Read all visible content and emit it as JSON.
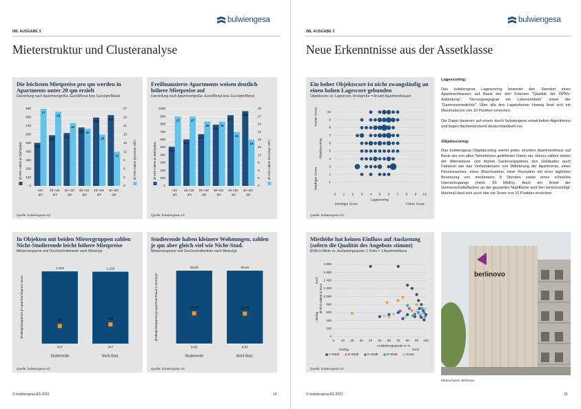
{
  "pages": [
    {
      "header": "IML AUSGABE 3",
      "logo": "bulwiengesa",
      "title": "Mieterstruktur und Clusteranalyse",
      "footer": "© bulwiengesa AG 2021",
      "page_number": "14"
    },
    {
      "header": "IML AUSGABE 3",
      "logo": "bulwiengesa",
      "title": "Neue Erkenntnisse aus der Assetklasse",
      "footer": "© bulwiengesa AG 2021",
      "page_number": "15"
    }
  ],
  "text": {
    "sections": [
      {
        "heading": "Lagescoring:",
        "paragraphs": [
          "Das bulwiengesa Lagescoring bewertet den Standort eines Apartmenthauses auf Basis der drei Kriterien \"Qualität der ÖPNV-Anbindung\", \"Versorgungsgrad mit Lebensmitteln\" sowie der \"Gastronomiedichte\". Über alle drei Lagekriterien hinweg lässt sich ein Maximalscore von 10 Punkten erreichen.",
          "Die Daten basieren auf einem durch bulwiengesa entwickelten Algorithmus und liegen flächendeckend deutschlandweit vor."
        ]
      },
      {
        "heading": "Objektscoring:",
        "paragraphs": [
          "Das bulwiengesa Objektscoring wertet jedes einzelne Apartmenthaus auf Basis der von allen Teilnehmern gelieferten Daten ein. Hierzu zählen neben der Altersklasse und letzten Sanierungsjahres des Gebäudes auch Faktoren wie das Vorhandensein von Möblierung der Apartments, eines Fitnessraumes, eines Waschsalons, einer Rezeption mit einer täglichen Besetzung von mindestens 8 Stunden sowie eines schnellen Internetzugangs (mind. 50 Mbit/s). Auch der Anteil der Gemeinschaftsflächen an der gesamten Nutzfläche wird hier berücksichtigt. Maximal lässt sich auch hier ein Score von 10 Punkten erreichen."
        ]
      }
    ]
  },
  "photo": {
    "sign": "berlinovo",
    "caption": "Bildnachweis: Berlinovo"
  },
  "chart_data": [
    {
      "type": "bar",
      "title": "Die höchsten Mietpreise pro qm werden in Apartments unter 20 qm erzielt",
      "subtitle": "Darstellung nach Apartmentgröße, Euro/Monat bzw. Euro/qm/Monat",
      "source": "Quelle: bulwiengesa AG",
      "categories": [
        "<20 qm",
        "20-<25 qm",
        "25-<30 qm",
        "30-<40 qm",
        "40-<50 qm",
        "40-<50 qm"
      ],
      "series": [
        {
          "name": "Ø All-in Miete je Wohnplatz",
          "color": "#1d4e7e",
          "values": [
            503,
            592,
            617,
            682,
            798,
            826
          ]
        },
        {
          "name": "Ø All-in Miete (Euro/qm Wfl.)",
          "color": "#62c3ea",
          "values": [
            27,
            26,
            22,
            20,
            18,
            12
          ],
          "axis": "y2"
        }
      ],
      "ylim": [
        0,
        900
      ],
      "yticks": [
        0,
        100,
        200,
        300,
        400,
        500,
        600,
        700,
        800,
        900
      ],
      "y2lim": [
        0,
        27
      ],
      "y2ticks": [
        0,
        3,
        6,
        9,
        12,
        15,
        18,
        21,
        24,
        27
      ],
      "grid": true
    },
    {
      "type": "bar",
      "title": "Freifinanzierte Apartments weisen deutlich höhere Mietpreise auf",
      "subtitle": "Darstellung nach Apartmentgröße, Euro/Monat bzw. Euro/qm/Monat",
      "source": "Quelle: bulwiengesa AG",
      "categories": [
        "<20 qm",
        "20-<25 qm",
        "25-<30 qm",
        "30-<40 qm",
        "40-<50 qm",
        "40-<50 qm"
      ],
      "series": [
        {
          "name": "Ø All-in Miete je Wohnplatz",
          "color": "#1d4e7e",
          "values": [
            508,
            603,
            671,
            794,
            917,
            969
          ]
        },
        {
          "name": "Ø All-in Miete (Euro/qm Wfl.)",
          "color": "#62c3ea",
          "values": [
            27,
            27,
            25,
            25,
            21,
            18
          ],
          "axis": "y2"
        }
      ],
      "ylim": [
        0,
        1000
      ],
      "yticks": [
        0,
        100,
        200,
        300,
        400,
        500,
        600,
        700,
        800,
        900,
        1000
      ],
      "y2lim": [
        0,
        30
      ],
      "y2ticks": [
        0,
        3,
        6,
        9,
        12,
        15,
        18,
        21,
        24,
        27,
        30
      ],
      "grid": true
    },
    {
      "type": "range",
      "title": "In Objekten mit beiden Mietergruppen zahlen Nicht-Studierende leicht höhere Mietpreise",
      "subtitle": "Mietpreisspanne und Durchschnittsmiete nach Mietertyp",
      "source": "Quelle: bulwiengesa AG",
      "ylabel": "Ø-Mietpreisspanne je Apartmenthaus in Euro",
      "categories": [
        "Studierende",
        "Nicht-Stud."
      ],
      "low": {
        "color": "#0d4a7c",
        "values": [
          347,
          347
        ],
        "value_labels": [
          "347",
          "347"
        ]
      },
      "high": {
        "color": "#0d4a7c",
        "values": [
          1233,
          1229
        ],
        "value_labels": [
          "1.233",
          "1.229"
        ]
      },
      "mean": {
        "color": "#f0962a",
        "values": [
          565,
          584
        ],
        "value_labels": [
          "565",
          "584"
        ]
      },
      "ylim": [
        300,
        1290
      ]
    },
    {
      "type": "range",
      "title": "Studierende haben kleinere Wohnungen, zahlen je qm aber gleich viel wie Nicht-Stud.",
      "subtitle": "Mietpreisspanne und Durchschnittsmiete nach Mietertyp",
      "source": "Quelle: bulwiengesa AG",
      "ylabel": "Ø Mietpreisspanne je Apartmenthaus in Euro/qm",
      "categories": [
        "Studierende",
        "Nicht-Stud."
      ],
      "low": {
        "color": "#0d4a7c",
        "values": [
          8,
          8
        ],
        "value_labels": [
          "8,00",
          "8,00"
        ]
      },
      "high": {
        "color": "#0d4a7c",
        "values": [
          35.5,
          35.5
        ],
        "value_labels": [
          "35,50",
          "35,50"
        ]
      },
      "mean": {
        "color": "#f0962a",
        "values": [
          19.4,
          19.3
        ],
        "value_labels": [
          "19,40",
          "19,30"
        ]
      },
      "ylim": [
        6.5,
        37
      ]
    },
    {
      "type": "bubble",
      "title": "Ein hoher Objektscore ist nicht zwangsläufig an einen hohen Lagescore gebunden",
      "subtitle": "Objektscore vs. Lagescore, Kreisgröße = Anzahl Apartmenthäuser",
      "source": "Quelle: bulwiengesa AG",
      "xlabel": "Lagescoring",
      "ylabel": "Objektscoring",
      "x_low": "Niedriger Score",
      "x_high": "Hoher Score",
      "y_low": "Niedriger Score",
      "y_high": "Hoher Score",
      "color": "#1d4e7e",
      "x": [
        4,
        5,
        5.5,
        6,
        6.5,
        7,
        3,
        4,
        4.5,
        5,
        5.5,
        6,
        6.5,
        7,
        3,
        3.5,
        4,
        4.5,
        5,
        5.5,
        6,
        6.5,
        2.5,
        3,
        4,
        4.5,
        5,
        5.5,
        6,
        6.5,
        7,
        3,
        3.5,
        4,
        4.5,
        5,
        5.5,
        6,
        6.5,
        7,
        3,
        3.5,
        4,
        4.5,
        5,
        5.5,
        6,
        6.5,
        7,
        3,
        3.5,
        4,
        4.5,
        5,
        5.5,
        6,
        6.5,
        2.5,
        3.5,
        4,
        4.5,
        5,
        6,
        6.5,
        3,
        4,
        5,
        5.5,
        6
      ],
      "values": [
        10,
        10,
        10,
        10,
        10,
        10,
        9,
        9,
        9,
        9,
        9,
        9,
        9,
        9,
        8,
        8,
        8,
        8,
        8,
        8,
        8,
        8,
        7,
        7,
        7,
        7,
        7,
        7,
        7,
        7,
        7,
        6,
        6,
        6,
        6,
        6,
        6,
        6,
        6,
        6,
        5,
        5,
        5,
        5,
        5,
        5,
        5,
        5,
        5,
        4,
        4,
        4,
        4,
        4,
        4,
        4,
        4,
        3,
        3,
        3,
        3,
        3,
        3,
        3,
        2,
        2,
        2,
        2,
        2
      ],
      "sizes": [
        1,
        1,
        2,
        2,
        1,
        1,
        1,
        1,
        1,
        2,
        2,
        3,
        2,
        1,
        1,
        1,
        1,
        2,
        2,
        4,
        2,
        1,
        1,
        2,
        1,
        1,
        2,
        2,
        3,
        1,
        1,
        1,
        1,
        2,
        1,
        2,
        1,
        2,
        1,
        1,
        1,
        1,
        1,
        1,
        1,
        1,
        1,
        1,
        1,
        1,
        1,
        1,
        2,
        1,
        1,
        2,
        1,
        3,
        1,
        1,
        1,
        2,
        1,
        5,
        1,
        1,
        1,
        1,
        1
      ],
      "xlim": [
        0,
        10
      ],
      "xticks": [
        0,
        1,
        2,
        3,
        4,
        5,
        6,
        7,
        8,
        9,
        10
      ],
      "ylim": [
        0,
        10.6
      ],
      "yticks": [
        1,
        2,
        3,
        4,
        5,
        6,
        7,
        8,
        9,
        10
      ],
      "grid": true
    },
    {
      "type": "scatter",
      "title": "Miethöhe hat keinen Einfluss auf Auslastung (sofern die Qualität des Angebots stimmt)",
      "subtitle": "Ø All-in-Miete vs. Auslastungsquote; 1 Kreis = 1 Apartmenthaus",
      "source": "Quelle: bulwiengesa AG",
      "xlabel": "Auslastungsquote in %",
      "ylabel": "Ø All-in-Miete in Euro",
      "low_label": "niedrig",
      "high_label": "hoch",
      "series": [
        {
          "name": "A-Stadt",
          "color": "#1d3f6e",
          "x": [
            40,
            70,
            80,
            85,
            90,
            92,
            95,
            97,
            60,
            70,
            80,
            88,
            95,
            98,
            50,
            75,
            100,
            93
          ],
          "values": [
            1750,
            1750,
            1280,
            1200,
            1050,
            900,
            800,
            650,
            550,
            600,
            550,
            500,
            480,
            420,
            500,
            450,
            550,
            700
          ]
        },
        {
          "name": "B-Stadt",
          "color": "#f0962a",
          "x": [
            20,
            58,
            70,
            60,
            75,
            90,
            85
          ],
          "values": [
            580,
            850,
            900,
            500,
            980,
            800,
            650
          ]
        },
        {
          "name": "C-Stadt",
          "color": "#8e4fa0",
          "x": [
            72,
            88,
            94,
            98,
            82
          ],
          "values": [
            640,
            560,
            520,
            600,
            700
          ]
        },
        {
          "name": "D-Stadt",
          "color": "#2aa7a0",
          "x": [
            80,
            92,
            96,
            99,
            86
          ],
          "values": [
            780,
            600,
            700,
            500,
            520
          ]
        },
        {
          "name": "Sonst.",
          "color": "#7fcdee",
          "x": [
            55,
            65,
            90,
            95,
            99,
            78
          ],
          "values": [
            520,
            560,
            650,
            560,
            680,
            500
          ]
        }
      ],
      "xlim": [
        0,
        100
      ],
      "xticks": [
        0,
        10,
        20,
        30,
        40,
        50,
        60,
        70,
        80,
        90,
        100
      ],
      "ylim": [
        0,
        1850
      ],
      "yticks": [
        0,
        200,
        400,
        600,
        800,
        {
          "value": 1000,
          "label": "1.000"
        },
        {
          "value": 1200,
          "label": "1.200"
        },
        {
          "value": 1400,
          "label": "1.400"
        },
        {
          "value": 1600,
          "label": "1.600"
        },
        {
          "value": 1800,
          "label": "1.800"
        }
      ],
      "grid": true
    }
  ]
}
